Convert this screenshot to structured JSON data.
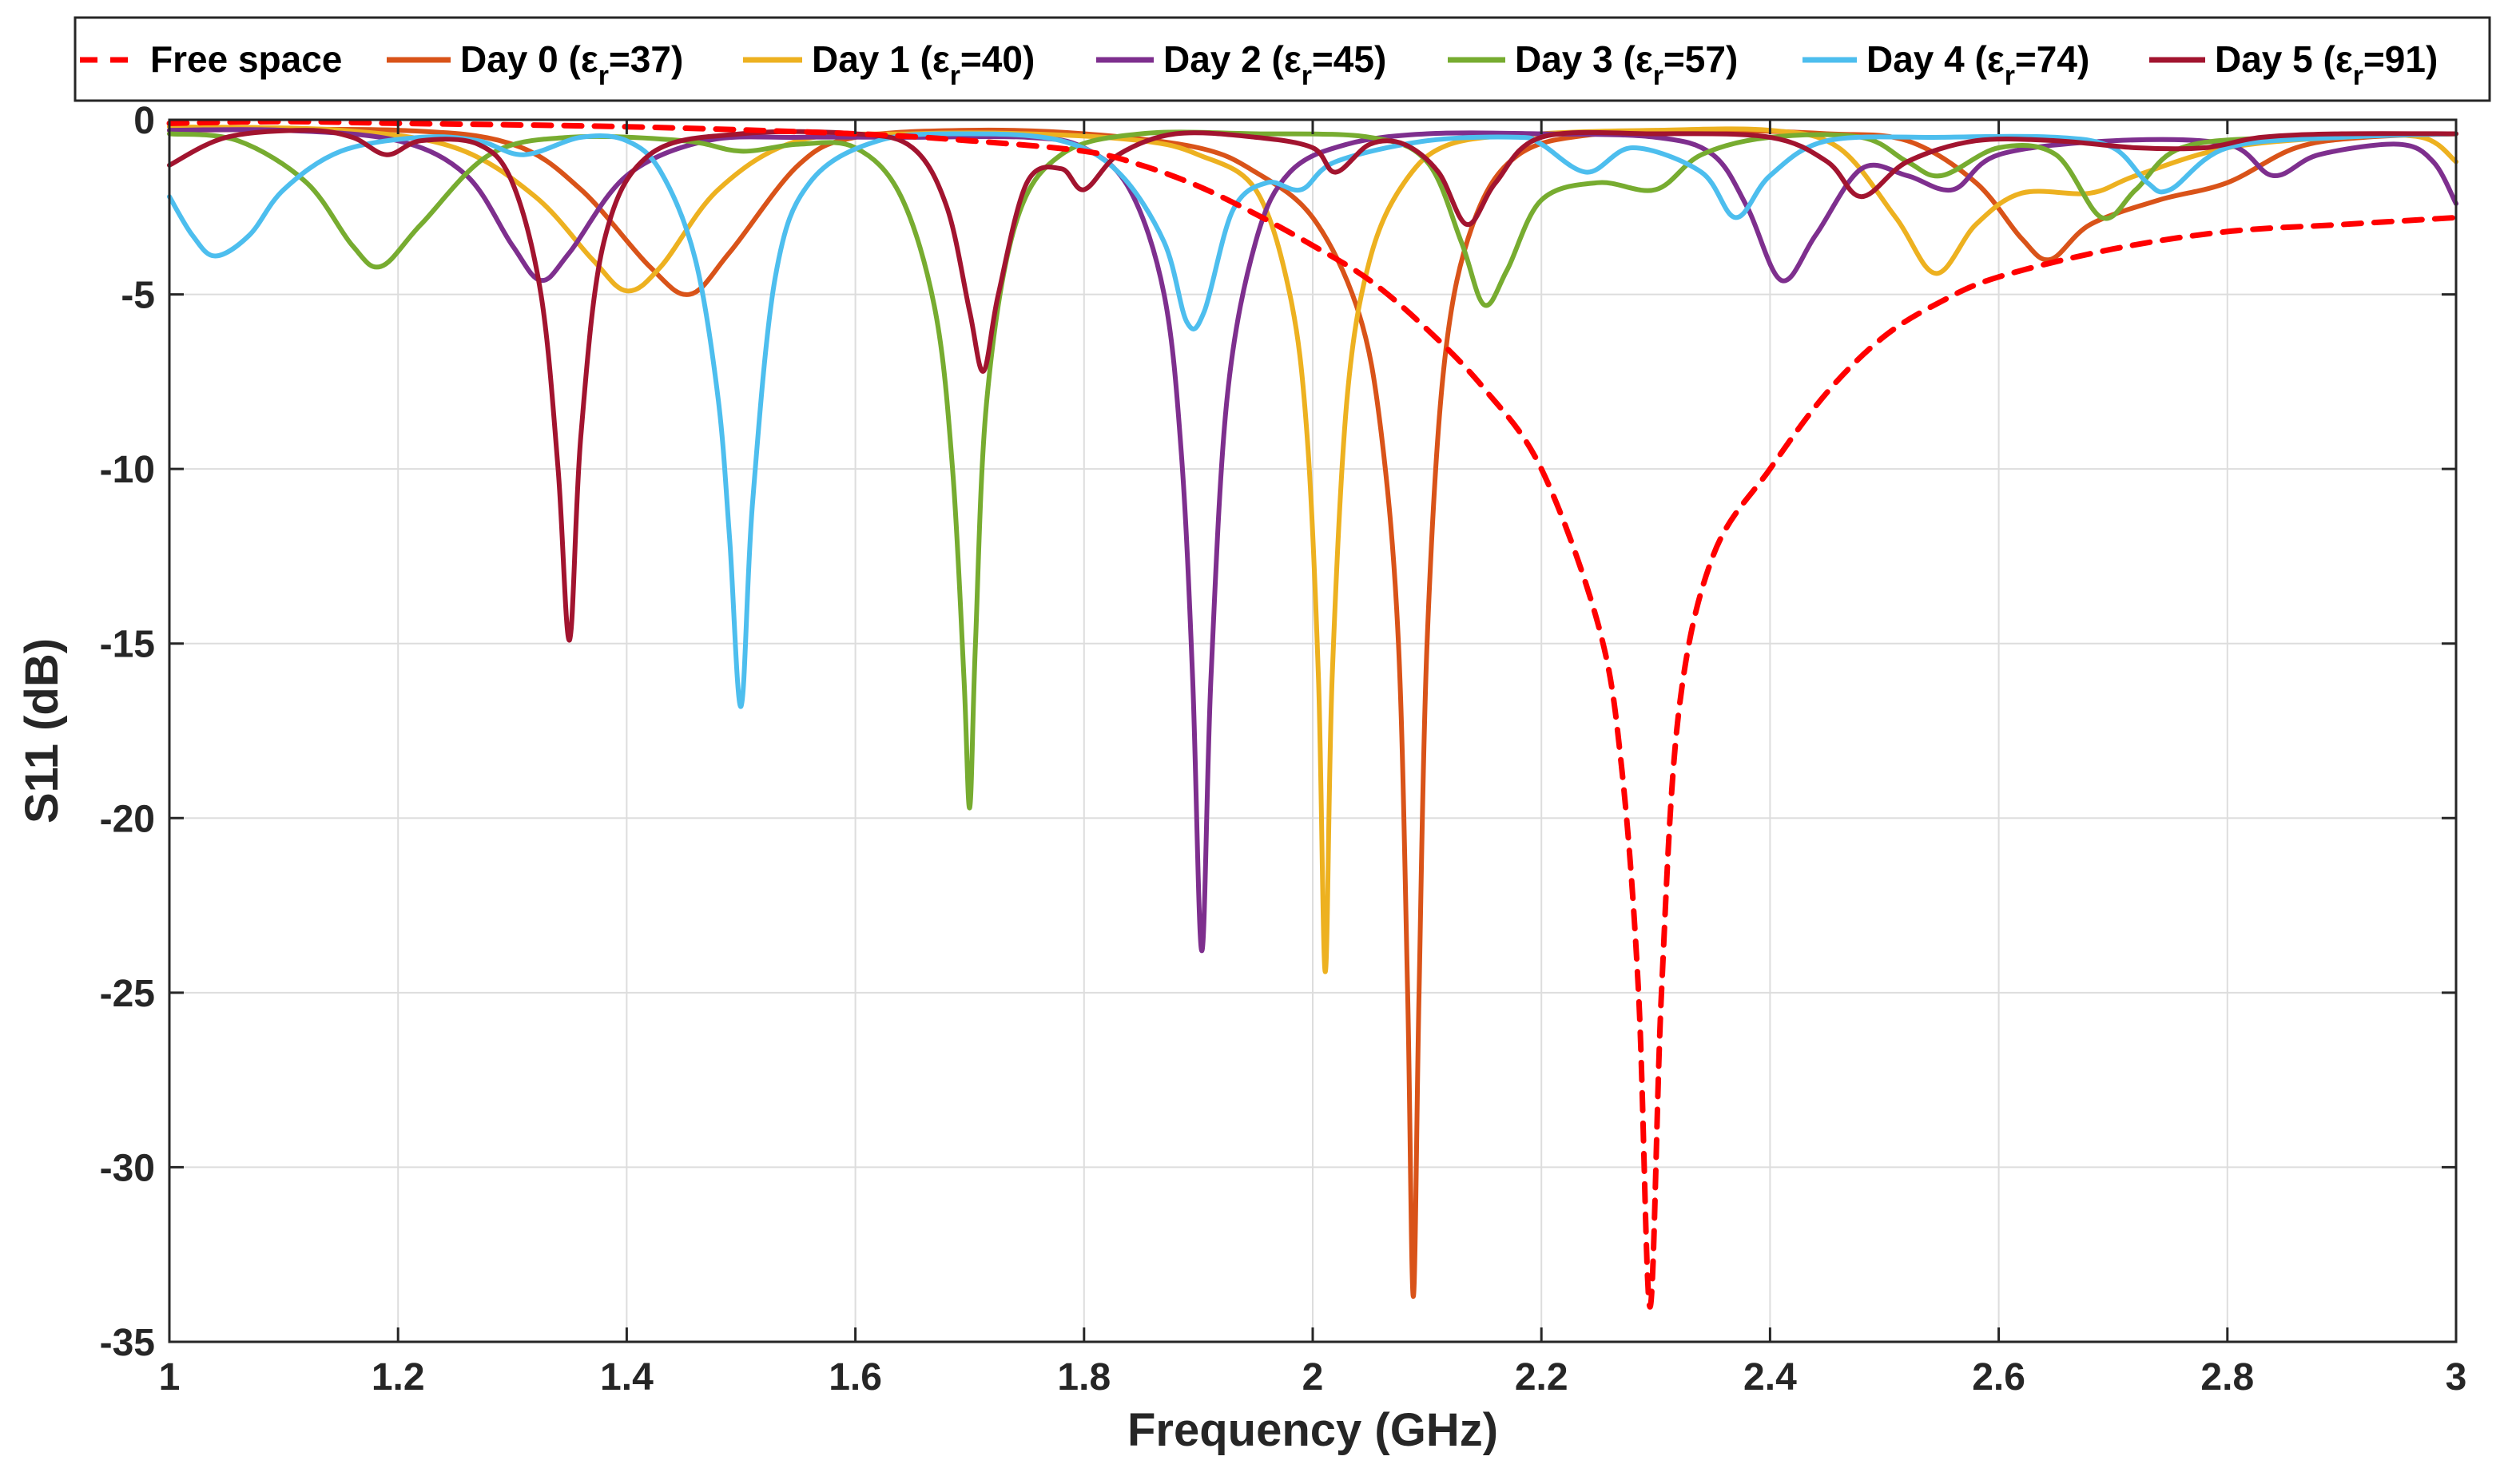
{
  "chart_data": {
    "type": "line",
    "title": "",
    "xlabel": "Frequency (GHz)",
    "ylabel": "S11 (dB)",
    "xlim": [
      1,
      3
    ],
    "ylim": [
      -35,
      0
    ],
    "xticks": [
      1,
      1.2,
      1.4,
      1.6,
      1.8,
      2,
      2.2,
      2.4,
      2.6,
      2.8,
      3
    ],
    "xtick_labels": [
      "1",
      "1.2",
      "1.4",
      "1.6",
      "1.8",
      "2",
      "2.2",
      "2.4",
      "2.6",
      "2.8",
      "3"
    ],
    "yticks": [
      0,
      -5,
      -10,
      -15,
      -20,
      -25,
      -30,
      -35
    ],
    "ytick_labels": [
      "0",
      "-5",
      "-10",
      "-15",
      "-20",
      "-25",
      "-30",
      "-35"
    ],
    "grid": true,
    "legend_position": "top",
    "series": [
      {
        "name": "Free space",
        "legend_prefix": "Free space",
        "legend_sub": "",
        "legend_suffix": "",
        "color": "#ff0000",
        "dashed": true,
        "points": [
          [
            1.0,
            -0.1
          ],
          [
            1.1,
            -0.05
          ],
          [
            1.2,
            -0.1
          ],
          [
            1.4,
            -0.2
          ],
          [
            1.6,
            -0.4
          ],
          [
            1.7,
            -0.6
          ],
          [
            1.8,
            -0.9
          ],
          [
            1.85,
            -1.3
          ],
          [
            1.9,
            -1.9
          ],
          [
            1.95,
            -2.7
          ],
          [
            2.0,
            -3.6
          ],
          [
            2.05,
            -4.6
          ],
          [
            2.1,
            -6.0
          ],
          [
            2.15,
            -7.7
          ],
          [
            2.2,
            -10.0
          ],
          [
            2.25,
            -14.5
          ],
          [
            2.27,
            -18.5
          ],
          [
            2.285,
            -25.0
          ],
          [
            2.295,
            -34.0
          ],
          [
            2.305,
            -25.0
          ],
          [
            2.32,
            -17.0
          ],
          [
            2.35,
            -12.5
          ],
          [
            2.4,
            -10.0
          ],
          [
            2.45,
            -7.8
          ],
          [
            2.5,
            -6.2
          ],
          [
            2.55,
            -5.2
          ],
          [
            2.6,
            -4.5
          ],
          [
            2.7,
            -3.7
          ],
          [
            2.8,
            -3.2
          ],
          [
            2.9,
            -3.0
          ],
          [
            3.0,
            -2.8
          ]
        ]
      },
      {
        "name": "Day 0 (εr=37)",
        "legend_prefix": "Day 0 (ε",
        "legend_sub": "r",
        "legend_suffix": "=37)",
        "color": "#d95319",
        "dashed": false,
        "points": [
          [
            1.0,
            -0.3
          ],
          [
            1.2,
            -0.3
          ],
          [
            1.3,
            -0.7
          ],
          [
            1.36,
            -2.0
          ],
          [
            1.42,
            -4.2
          ],
          [
            1.455,
            -5.0
          ],
          [
            1.49,
            -3.8
          ],
          [
            1.55,
            -1.3
          ],
          [
            1.6,
            -0.5
          ],
          [
            1.7,
            -0.3
          ],
          [
            1.8,
            -0.4
          ],
          [
            1.9,
            -0.8
          ],
          [
            1.95,
            -1.5
          ],
          [
            2.0,
            -2.8
          ],
          [
            2.04,
            -5.5
          ],
          [
            2.06,
            -9.0
          ],
          [
            2.075,
            -15.0
          ],
          [
            2.083,
            -25.0
          ],
          [
            2.088,
            -33.7
          ],
          [
            2.093,
            -25.0
          ],
          [
            2.1,
            -15.0
          ],
          [
            2.115,
            -7.0
          ],
          [
            2.14,
            -3.0
          ],
          [
            2.18,
            -1.0
          ],
          [
            2.25,
            -0.4
          ],
          [
            2.35,
            -0.3
          ],
          [
            2.45,
            -0.4
          ],
          [
            2.52,
            -0.6
          ],
          [
            2.58,
            -1.8
          ],
          [
            2.62,
            -3.4
          ],
          [
            2.645,
            -4.0
          ],
          [
            2.68,
            -3.0
          ],
          [
            2.74,
            -2.3
          ],
          [
            2.8,
            -1.8
          ],
          [
            2.86,
            -0.8
          ],
          [
            2.92,
            -0.5
          ],
          [
            3.0,
            -0.4
          ]
        ]
      },
      {
        "name": "Day 1 (εr=40)",
        "legend_prefix": "Day 1 (ε",
        "legend_sub": "r",
        "legend_suffix": "=40)",
        "color": "#edb120",
        "dashed": false,
        "points": [
          [
            1.0,
            -0.2
          ],
          [
            1.15,
            -0.3
          ],
          [
            1.25,
            -0.8
          ],
          [
            1.32,
            -2.2
          ],
          [
            1.37,
            -4.0
          ],
          [
            1.4,
            -4.9
          ],
          [
            1.43,
            -4.2
          ],
          [
            1.48,
            -2.0
          ],
          [
            1.55,
            -0.6
          ],
          [
            1.65,
            -0.4
          ],
          [
            1.75,
            -0.4
          ],
          [
            1.85,
            -0.6
          ],
          [
            1.9,
            -1.0
          ],
          [
            1.95,
            -2.0
          ],
          [
            1.98,
            -5.0
          ],
          [
            1.995,
            -9.0
          ],
          [
            2.005,
            -16.0
          ],
          [
            2.011,
            -24.4
          ],
          [
            2.017,
            -16.0
          ],
          [
            2.03,
            -8.0
          ],
          [
            2.05,
            -4.0
          ],
          [
            2.08,
            -1.8
          ],
          [
            2.12,
            -0.7
          ],
          [
            2.2,
            -0.4
          ],
          [
            2.3,
            -0.3
          ],
          [
            2.4,
            -0.3
          ],
          [
            2.46,
            -0.8
          ],
          [
            2.51,
            -2.8
          ],
          [
            2.545,
            -4.4
          ],
          [
            2.58,
            -3.0
          ],
          [
            2.62,
            -2.1
          ],
          [
            2.68,
            -2.1
          ],
          [
            2.72,
            -1.6
          ],
          [
            2.8,
            -0.8
          ],
          [
            2.9,
            -0.5
          ],
          [
            2.97,
            -0.5
          ],
          [
            3.0,
            -1.2
          ]
        ]
      },
      {
        "name": "Day 2 (εr=45)",
        "legend_prefix": "Day 2 (ε",
        "legend_sub": "r",
        "legend_suffix": "=45)",
        "color": "#7e2f8e",
        "dashed": false,
        "points": [
          [
            1.0,
            -0.3
          ],
          [
            1.1,
            -0.3
          ],
          [
            1.2,
            -0.6
          ],
          [
            1.26,
            -1.6
          ],
          [
            1.3,
            -3.6
          ],
          [
            1.325,
            -4.6
          ],
          [
            1.35,
            -3.8
          ],
          [
            1.4,
            -1.6
          ],
          [
            1.47,
            -0.6
          ],
          [
            1.55,
            -0.5
          ],
          [
            1.65,
            -0.5
          ],
          [
            1.75,
            -0.5
          ],
          [
            1.8,
            -0.8
          ],
          [
            1.84,
            -2.0
          ],
          [
            1.87,
            -5.0
          ],
          [
            1.885,
            -9.5
          ],
          [
            1.895,
            -16.0
          ],
          [
            1.903,
            -23.8
          ],
          [
            1.911,
            -16.0
          ],
          [
            1.925,
            -8.0
          ],
          [
            1.95,
            -3.5
          ],
          [
            1.98,
            -1.5
          ],
          [
            2.03,
            -0.7
          ],
          [
            2.1,
            -0.4
          ],
          [
            2.2,
            -0.4
          ],
          [
            2.3,
            -0.5
          ],
          [
            2.35,
            -1.0
          ],
          [
            2.38,
            -2.5
          ],
          [
            2.41,
            -4.6
          ],
          [
            2.44,
            -3.3
          ],
          [
            2.48,
            -1.4
          ],
          [
            2.52,
            -1.6
          ],
          [
            2.56,
            -2.0
          ],
          [
            2.6,
            -1.0
          ],
          [
            2.7,
            -0.6
          ],
          [
            2.8,
            -0.7
          ],
          [
            2.84,
            -1.6
          ],
          [
            2.88,
            -1.0
          ],
          [
            2.95,
            -0.7
          ],
          [
            2.98,
            -1.2
          ],
          [
            3.0,
            -2.4
          ]
        ]
      },
      {
        "name": "Day 3 (εr=57)",
        "legend_prefix": "Day 3 (ε",
        "legend_sub": "r",
        "legend_suffix": "=57)",
        "color": "#77ac30",
        "dashed": false,
        "points": [
          [
            1.0,
            -0.4
          ],
          [
            1.06,
            -0.6
          ],
          [
            1.12,
            -1.8
          ],
          [
            1.16,
            -3.6
          ],
          [
            1.185,
            -4.2
          ],
          [
            1.22,
            -3.0
          ],
          [
            1.28,
            -1.0
          ],
          [
            1.35,
            -0.5
          ],
          [
            1.45,
            -0.6
          ],
          [
            1.5,
            -0.9
          ],
          [
            1.55,
            -0.7
          ],
          [
            1.6,
            -0.8
          ],
          [
            1.64,
            -2.2
          ],
          [
            1.67,
            -5.5
          ],
          [
            1.685,
            -10.0
          ],
          [
            1.695,
            -16.0
          ],
          [
            1.7,
            -19.7
          ],
          [
            1.705,
            -15.0
          ],
          [
            1.715,
            -8.0
          ],
          [
            1.74,
            -3.0
          ],
          [
            1.78,
            -1.0
          ],
          [
            1.85,
            -0.4
          ],
          [
            1.95,
            -0.4
          ],
          [
            2.05,
            -0.5
          ],
          [
            2.1,
            -1.2
          ],
          [
            2.13,
            -3.5
          ],
          [
            2.15,
            -5.3
          ],
          [
            2.17,
            -4.3
          ],
          [
            2.2,
            -2.3
          ],
          [
            2.25,
            -1.8
          ],
          [
            2.3,
            -2.0
          ],
          [
            2.34,
            -1.0
          ],
          [
            2.4,
            -0.5
          ],
          [
            2.48,
            -0.5
          ],
          [
            2.52,
            -1.2
          ],
          [
            2.55,
            -1.6
          ],
          [
            2.6,
            -0.8
          ],
          [
            2.65,
            -1.0
          ],
          [
            2.69,
            -2.8
          ],
          [
            2.72,
            -2.0
          ],
          [
            2.76,
            -0.8
          ],
          [
            2.85,
            -0.5
          ],
          [
            3.0,
            -0.4
          ]
        ]
      },
      {
        "name": "Day 4 (εr=74)",
        "legend_prefix": "Day 4 (ε",
        "legend_sub": "r",
        "legend_suffix": "=74)",
        "color": "#4dbeee",
        "dashed": false,
        "points": [
          [
            1.0,
            -2.2
          ],
          [
            1.02,
            -3.3
          ],
          [
            1.04,
            -3.9
          ],
          [
            1.07,
            -3.3
          ],
          [
            1.1,
            -2.0
          ],
          [
            1.15,
            -0.9
          ],
          [
            1.22,
            -0.5
          ],
          [
            1.27,
            -0.6
          ],
          [
            1.31,
            -1.0
          ],
          [
            1.36,
            -0.5
          ],
          [
            1.4,
            -0.6
          ],
          [
            1.43,
            -1.5
          ],
          [
            1.46,
            -4.0
          ],
          [
            1.48,
            -8.0
          ],
          [
            1.49,
            -12.0
          ],
          [
            1.5,
            -16.8
          ],
          [
            1.51,
            -11.0
          ],
          [
            1.53,
            -4.5
          ],
          [
            1.56,
            -1.8
          ],
          [
            1.62,
            -0.6
          ],
          [
            1.7,
            -0.4
          ],
          [
            1.78,
            -0.6
          ],
          [
            1.83,
            -1.5
          ],
          [
            1.87,
            -3.5
          ],
          [
            1.89,
            -5.8
          ],
          [
            1.905,
            -5.5
          ],
          [
            1.93,
            -2.6
          ],
          [
            1.96,
            -1.8
          ],
          [
            1.99,
            -2.0
          ],
          [
            2.02,
            -1.2
          ],
          [
            2.1,
            -0.6
          ],
          [
            2.18,
            -0.5
          ],
          [
            2.2,
            -0.7
          ],
          [
            2.24,
            -1.5
          ],
          [
            2.28,
            -0.8
          ],
          [
            2.34,
            -1.5
          ],
          [
            2.37,
            -2.8
          ],
          [
            2.4,
            -1.6
          ],
          [
            2.45,
            -0.6
          ],
          [
            2.55,
            -0.5
          ],
          [
            2.65,
            -0.5
          ],
          [
            2.7,
            -0.8
          ],
          [
            2.73,
            -1.8
          ],
          [
            2.75,
            -2.0
          ],
          [
            2.8,
            -0.8
          ],
          [
            2.9,
            -0.5
          ],
          [
            3.0,
            -0.4
          ]
        ]
      },
      {
        "name": "Day 5 (εr=91)",
        "legend_prefix": "Day 5 (ε",
        "legend_sub": "r",
        "legend_suffix": "=91)",
        "color": "#a2142f",
        "dashed": false,
        "points": [
          [
            1.0,
            -1.3
          ],
          [
            1.05,
            -0.5
          ],
          [
            1.12,
            -0.3
          ],
          [
            1.16,
            -0.5
          ],
          [
            1.19,
            -1.0
          ],
          [
            1.22,
            -0.6
          ],
          [
            1.27,
            -0.7
          ],
          [
            1.3,
            -1.8
          ],
          [
            1.325,
            -5.0
          ],
          [
            1.34,
            -10.0
          ],
          [
            1.35,
            -14.9
          ],
          [
            1.36,
            -9.0
          ],
          [
            1.38,
            -3.5
          ],
          [
            1.42,
            -1.0
          ],
          [
            1.5,
            -0.4
          ],
          [
            1.6,
            -0.4
          ],
          [
            1.65,
            -0.8
          ],
          [
            1.68,
            -2.5
          ],
          [
            1.7,
            -5.5
          ],
          [
            1.712,
            -7.2
          ],
          [
            1.725,
            -5.0
          ],
          [
            1.75,
            -1.8
          ],
          [
            1.78,
            -1.4
          ],
          [
            1.8,
            -2.0
          ],
          [
            1.83,
            -1.0
          ],
          [
            1.88,
            -0.4
          ],
          [
            1.95,
            -0.5
          ],
          [
            2.0,
            -0.8
          ],
          [
            2.02,
            -1.5
          ],
          [
            2.05,
            -0.7
          ],
          [
            2.08,
            -0.7
          ],
          [
            2.11,
            -1.5
          ],
          [
            2.135,
            -3.0
          ],
          [
            2.16,
            -1.8
          ],
          [
            2.2,
            -0.5
          ],
          [
            2.3,
            -0.4
          ],
          [
            2.4,
            -0.5
          ],
          [
            2.45,
            -1.2
          ],
          [
            2.48,
            -2.2
          ],
          [
            2.52,
            -1.2
          ],
          [
            2.58,
            -0.6
          ],
          [
            2.65,
            -0.6
          ],
          [
            2.72,
            -0.8
          ],
          [
            2.78,
            -0.8
          ],
          [
            2.83,
            -0.5
          ],
          [
            2.9,
            -0.4
          ],
          [
            3.0,
            -0.4
          ]
        ]
      }
    ]
  }
}
